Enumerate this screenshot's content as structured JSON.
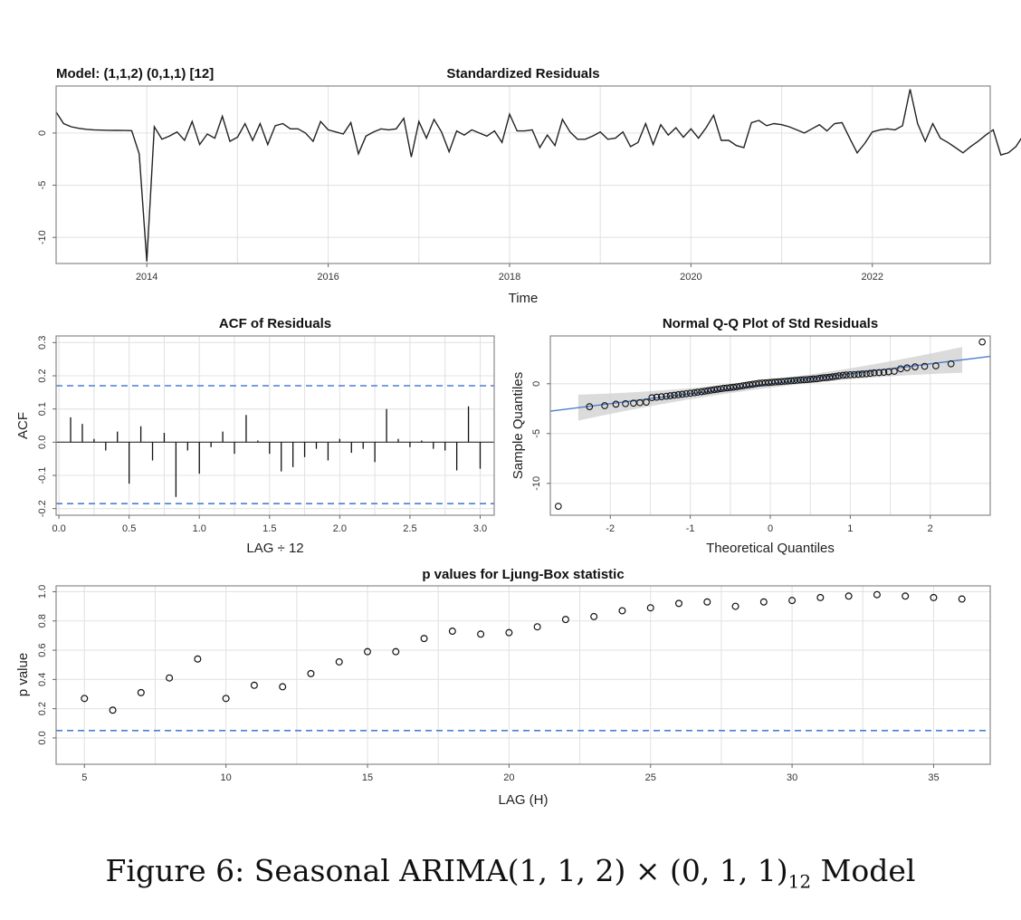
{
  "figure": {
    "caption_prefix": "Figure 6: Seasonal ARIMA(1, 1, 2) × (0, 1, 1)",
    "caption_sub": "12",
    "caption_suffix": " Model"
  },
  "colors": {
    "line": "#222222",
    "ci": "#4a7fd4",
    "qqline": "#4f7ec9",
    "band": "#cfcfcf"
  },
  "chart_data": [
    {
      "id": "resid",
      "type": "line",
      "title": "Standardized Residuals",
      "model_label": "Model: (1,1,2) (0,1,1) [12]",
      "xlabel": "Time",
      "ylabel": "",
      "xlim": [
        2013.0,
        2023.3
      ],
      "ylim": [
        -12.5,
        4.5
      ],
      "xticks": [
        2014,
        2016,
        2018,
        2020,
        2022
      ],
      "yticks": [
        0,
        -5,
        -10
      ],
      "ytick_labels": [
        "0",
        "-5",
        "-10"
      ],
      "x_start": 2013.0,
      "x_step": 0.083333,
      "values": [
        2.0,
        0.9,
        0.6,
        0.45,
        0.35,
        0.3,
        0.28,
        0.26,
        0.25,
        0.24,
        0.22,
        -2.0,
        -12.3,
        0.6,
        -0.6,
        -0.3,
        0.1,
        -0.7,
        1.1,
        -1.1,
        -0.1,
        -0.5,
        1.6,
        -0.8,
        -0.4,
        0.9,
        -0.7,
        0.9,
        -1.1,
        0.7,
        0.9,
        0.4,
        0.4,
        0.0,
        -0.8,
        1.1,
        0.3,
        0.1,
        -0.1,
        1.0,
        -2.0,
        -0.3,
        0.1,
        0.4,
        0.3,
        0.4,
        1.4,
        -2.3,
        1.1,
        -0.5,
        1.3,
        0.1,
        -1.8,
        0.2,
        -0.2,
        0.3,
        0.0,
        -0.3,
        0.2,
        -0.9,
        1.8,
        0.2,
        0.2,
        0.3,
        -1.4,
        -0.2,
        -1.2,
        1.3,
        0.1,
        -0.6,
        -0.6,
        -0.3,
        0.1,
        -0.6,
        -0.5,
        0.1,
        -1.3,
        -0.9,
        0.9,
        -1.1,
        0.8,
        -0.2,
        0.5,
        -0.4,
        0.4,
        -0.5,
        0.5,
        1.7,
        -0.7,
        -0.7,
        -1.2,
        -1.4,
        1.0,
        1.2,
        0.7,
        0.9,
        0.8,
        0.6,
        0.3,
        0.0,
        0.4,
        0.8,
        0.2,
        0.9,
        1.0,
        -0.5,
        -1.9,
        -1.0,
        0.1,
        0.3,
        0.4,
        0.3,
        0.7,
        4.2,
        0.9,
        -0.8,
        0.9,
        -0.5,
        -0.9,
        -1.4,
        -1.9,
        -1.3,
        -0.8,
        -0.2,
        0.3,
        -2.1,
        -1.9,
        -1.3,
        -0.2,
        0.3
      ]
    },
    {
      "id": "acf",
      "type": "bar",
      "title": "ACF of Residuals",
      "xlabel": "LAG ÷ 12",
      "ylabel": "ACF",
      "xlim": [
        -0.02,
        3.1
      ],
      "ylim": [
        -0.22,
        0.32
      ],
      "xticks": [
        0.0,
        0.5,
        1.0,
        1.5,
        2.0,
        2.5,
        3.0
      ],
      "xtick_labels": [
        "0.0",
        "0.5",
        "1.0",
        "1.5",
        "2.0",
        "2.5",
        "3.0"
      ],
      "yticks": [
        0.3,
        0.2,
        0.1,
        0.0,
        -0.1,
        -0.2
      ],
      "ytick_labels": [
        "0.3",
        "0.2",
        "0.1",
        "0.0",
        "-0.1",
        "-0.2"
      ],
      "ci": [
        0.17,
        -0.185
      ],
      "lag_step": 0.083333,
      "values": [
        0.075,
        0.055,
        0.01,
        -0.025,
        0.032,
        -0.125,
        0.048,
        -0.055,
        0.028,
        -0.165,
        -0.025,
        -0.095,
        -0.015,
        0.032,
        -0.035,
        0.082,
        0.005,
        -0.035,
        -0.088,
        -0.075,
        -0.045,
        -0.02,
        -0.055,
        0.01,
        -0.032,
        -0.02,
        -0.06,
        0.1,
        0.01,
        -0.015,
        0.005,
        -0.02,
        -0.025,
        -0.085,
        0.108,
        -0.08
      ]
    },
    {
      "id": "qq",
      "type": "scatter",
      "title": "Normal Q-Q Plot of Std Residuals",
      "xlabel": "Theoretical Quantiles",
      "ylabel": "Sample Quantiles",
      "xlim": [
        -2.75,
        2.75
      ],
      "ylim": [
        -13.2,
        4.8
      ],
      "xticks": [
        -2,
        -1,
        0,
        1,
        2
      ],
      "xtick_labels": [
        "-2",
        "-1",
        "0",
        "1",
        "2"
      ],
      "yticks": [
        0,
        -5,
        -10
      ],
      "ytick_labels": [
        "0",
        "-5",
        "-10"
      ],
      "ref_line": {
        "intercept": 0.0,
        "slope": 1.0
      },
      "band_half_width": {
        "center": 0.4,
        "tails": 1.3
      },
      "points": [
        [
          -2.65,
          -12.3
        ],
        [
          -2.26,
          -2.3
        ],
        [
          -2.07,
          -2.2
        ],
        [
          -1.93,
          -2.05
        ],
        [
          -1.81,
          -2.0
        ],
        [
          -1.71,
          -1.95
        ],
        [
          -1.63,
          -1.9
        ],
        [
          -1.55,
          -1.85
        ],
        [
          -1.48,
          -1.4
        ],
        [
          -1.42,
          -1.35
        ],
        [
          -1.36,
          -1.3
        ],
        [
          -1.3,
          -1.25
        ],
        [
          -1.25,
          -1.2
        ],
        [
          -1.2,
          -1.15
        ],
        [
          -1.15,
          -1.1
        ],
        [
          -1.1,
          -1.05
        ],
        [
          -1.05,
          -1.0
        ],
        [
          -1.0,
          -0.95
        ],
        [
          -0.95,
          -0.9
        ],
        [
          -0.91,
          -0.85
        ],
        [
          -0.86,
          -0.8
        ],
        [
          -0.82,
          -0.75
        ],
        [
          -0.78,
          -0.7
        ],
        [
          -0.74,
          -0.65
        ],
        [
          -0.7,
          -0.6
        ],
        [
          -0.66,
          -0.55
        ],
        [
          -0.62,
          -0.5
        ],
        [
          -0.58,
          -0.45
        ],
        [
          -0.54,
          -0.42
        ],
        [
          -0.5,
          -0.38
        ],
        [
          -0.46,
          -0.35
        ],
        [
          -0.42,
          -0.3
        ],
        [
          -0.38,
          -0.25
        ],
        [
          -0.34,
          -0.2
        ],
        [
          -0.3,
          -0.15
        ],
        [
          -0.26,
          -0.1
        ],
        [
          -0.22,
          -0.05
        ],
        [
          -0.18,
          0.0
        ],
        [
          -0.14,
          0.05
        ],
        [
          -0.1,
          0.08
        ],
        [
          -0.06,
          0.1
        ],
        [
          -0.02,
          0.12
        ],
        [
          0.02,
          0.15
        ],
        [
          0.06,
          0.18
        ],
        [
          0.1,
          0.2
        ],
        [
          0.14,
          0.22
        ],
        [
          0.18,
          0.25
        ],
        [
          0.22,
          0.28
        ],
        [
          0.26,
          0.3
        ],
        [
          0.3,
          0.32
        ],
        [
          0.34,
          0.35
        ],
        [
          0.38,
          0.38
        ],
        [
          0.42,
          0.4
        ],
        [
          0.46,
          0.42
        ],
        [
          0.5,
          0.45
        ],
        [
          0.54,
          0.48
        ],
        [
          0.58,
          0.5
        ],
        [
          0.62,
          0.55
        ],
        [
          0.66,
          0.6
        ],
        [
          0.7,
          0.62
        ],
        [
          0.74,
          0.65
        ],
        [
          0.78,
          0.7
        ],
        [
          0.82,
          0.75
        ],
        [
          0.86,
          0.8
        ],
        [
          0.91,
          0.85
        ],
        [
          0.95,
          0.88
        ],
        [
          1.0,
          0.9
        ],
        [
          1.05,
          0.92
        ],
        [
          1.1,
          0.95
        ],
        [
          1.15,
          0.98
        ],
        [
          1.2,
          1.0
        ],
        [
          1.25,
          1.05
        ],
        [
          1.3,
          1.1
        ],
        [
          1.36,
          1.12
        ],
        [
          1.42,
          1.15
        ],
        [
          1.48,
          1.2
        ],
        [
          1.55,
          1.25
        ],
        [
          1.63,
          1.5
        ],
        [
          1.71,
          1.6
        ],
        [
          1.81,
          1.7
        ],
        [
          1.93,
          1.75
        ],
        [
          2.07,
          1.8
        ],
        [
          2.26,
          2.0
        ],
        [
          2.65,
          4.2
        ]
      ]
    },
    {
      "id": "ljung",
      "type": "scatter",
      "title": "p values for Ljung-Box statistic",
      "xlabel": "LAG (H)",
      "ylabel": "p value",
      "xlim": [
        4.0,
        37.0
      ],
      "ylim": [
        -0.18,
        1.04
      ],
      "xticks": [
        5,
        10,
        15,
        20,
        25,
        30,
        35
      ],
      "xtick_labels": [
        "5",
        "10",
        "15",
        "20",
        "25",
        "30",
        "35"
      ],
      "yticks": [
        0.0,
        0.2,
        0.4,
        0.6,
        0.8,
        1.0
      ],
      "ytick_labels": [
        "0.0",
        "0.2",
        "0.4",
        "0.6",
        "0.8",
        "1.0"
      ],
      "ci": [
        0.05
      ],
      "x": [
        5,
        6,
        7,
        8,
        9,
        10,
        11,
        12,
        13,
        14,
        15,
        16,
        17,
        18,
        19,
        20,
        21,
        22,
        23,
        24,
        25,
        26,
        27,
        28,
        29,
        30,
        31,
        32,
        33,
        34,
        35,
        36
      ],
      "y": [
        0.27,
        0.19,
        0.31,
        0.41,
        0.54,
        0.27,
        0.36,
        0.35,
        0.44,
        0.52,
        0.59,
        0.59,
        0.68,
        0.73,
        0.71,
        0.72,
        0.76,
        0.81,
        0.83,
        0.87,
        0.89,
        0.92,
        0.93,
        0.9,
        0.93,
        0.94,
        0.96,
        0.97,
        0.98,
        0.97,
        0.96,
        0.95
      ]
    }
  ]
}
